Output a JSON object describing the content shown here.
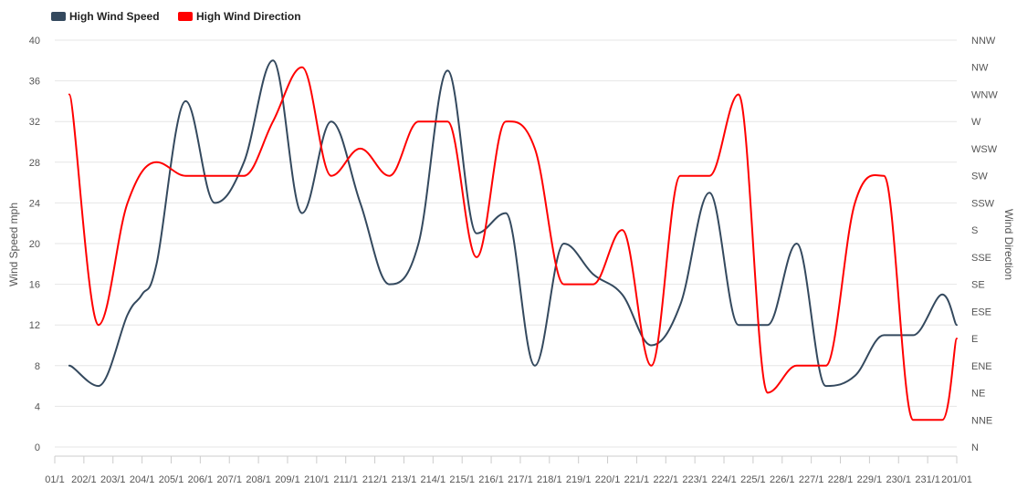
{
  "chart_data": {
    "type": "line",
    "legend_position": "top-left",
    "grid": true,
    "categories": [
      "01/1",
      "202/1",
      "203/1",
      "204/1",
      "205/1",
      "206/1",
      "207/1",
      "208/1",
      "209/1",
      "210/1",
      "211/1",
      "212/1",
      "213/1",
      "214/1",
      "215/1",
      "216/1",
      "217/1",
      "218/1",
      "219/1",
      "220/1",
      "221/1",
      "222/1",
      "223/1",
      "224/1",
      "225/1",
      "226/1",
      "227/1",
      "228/1",
      "229/1",
      "230/1",
      "231/1",
      "201/01"
    ],
    "y_left": {
      "label": "Wind Speed mph",
      "ticks": [
        0,
        4,
        8,
        12,
        16,
        20,
        24,
        28,
        32,
        36,
        40
      ],
      "ylim": [
        0,
        40
      ]
    },
    "y_right": {
      "label": "Wind Direction",
      "ticks": [
        "N",
        "NNE",
        "NE",
        "ENE",
        "E",
        "ESE",
        "SE",
        "SSE",
        "S",
        "SSW",
        "SW",
        "WSW",
        "W",
        "WNW",
        "NW",
        "NNW"
      ]
    },
    "series": [
      {
        "name": "High Wind Speed",
        "color": "#34495e",
        "axis": "left",
        "x": [
          0.5,
          1.5,
          2.5,
          3.0,
          3.5,
          4.5,
          5.5,
          6.5,
          7.5,
          8.5,
          9.5,
          10.5,
          11.5,
          12.5,
          13.5,
          14.5,
          15.5,
          16.5,
          17.5,
          18.5,
          19.5,
          20.5,
          21.5,
          22.5,
          23.5,
          24.5,
          25.5,
          26.5,
          27.5,
          28.5,
          29.5,
          30.5,
          31.0
        ],
        "values": [
          8,
          6,
          13,
          15,
          18,
          34,
          24,
          28,
          38,
          23,
          32,
          24,
          16,
          20,
          37,
          21,
          23,
          8,
          20,
          17,
          15,
          10,
          14,
          25,
          12,
          12,
          20,
          6,
          7,
          11,
          11,
          15,
          12
        ]
      },
      {
        "name": "High Wind Direction",
        "color": "#ff0000",
        "axis": "right",
        "x": [
          0.5,
          1.5,
          2.5,
          3.5,
          4.5,
          5.5,
          6.5,
          7.5,
          8.5,
          9.5,
          10.5,
          11.5,
          12.5,
          13.5,
          14.5,
          15.5,
          16.5,
          17.5,
          18.5,
          19.5,
          20.5,
          21.5,
          22.5,
          23.5,
          24.5,
          25.5,
          26.5,
          27.5,
          28.5,
          29.5,
          30.5,
          31.0
        ],
        "values": [
          13,
          4.5,
          9,
          10.5,
          10,
          10,
          10,
          12,
          14,
          10,
          11,
          10,
          12,
          12,
          7,
          12,
          11,
          6,
          6,
          8,
          3,
          10,
          10,
          13,
          2,
          3,
          3,
          9,
          10,
          1,
          1,
          4
        ]
      }
    ]
  }
}
